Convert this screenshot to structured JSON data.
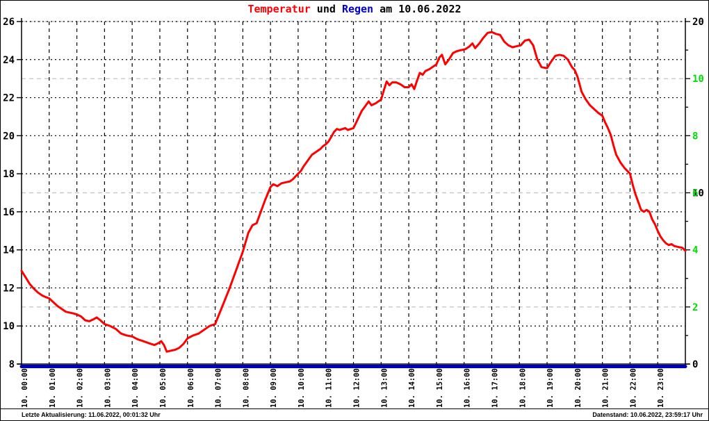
{
  "title": {
    "segments": [
      {
        "text": "Temperatur",
        "color": "#ff0000"
      },
      {
        "text": " und ",
        "color": "#000000"
      },
      {
        "text": "Regen",
        "color": "#0000cc"
      },
      {
        "text": " am 10.06.2022",
        "color": "#000000"
      }
    ]
  },
  "footer": {
    "left": "Letzte Aktualisierung: 11.06.2022, 00:01:32 Uhr",
    "right": "Datenstand: 10.06.2022, 23:59:17 Uhr"
  },
  "colors": {
    "temperature_line": "#ff0000",
    "rain_line": "#0000bb",
    "green_axis_text": "#00dd00",
    "black_axis_text": "#000000",
    "grid_black": "#000000",
    "grid_gray": "#c8c8c8",
    "background": "#ffffff"
  },
  "chart_data": {
    "type": "line",
    "title": "Temperatur und Regen am 10.06.2022",
    "grid": true,
    "x_axis": {
      "hours": 24,
      "labels": [
        "10. 00:00",
        "10. 01:00",
        "10. 02:00",
        "10. 03:00",
        "10. 04:00",
        "10. 05:00",
        "10. 06:00",
        "10. 07:00",
        "10. 08:00",
        "10. 09:00",
        "10. 10:00",
        "10. 11:00",
        "10. 12:00",
        "10. 13:00",
        "10. 14:00",
        "10. 15:00",
        "10. 16:00",
        "10. 17:00",
        "10. 18:00",
        "10. 19:00",
        "10. 20:00",
        "10. 21:00",
        "10. 22:00",
        "10. 23:00"
      ]
    },
    "left_axis": {
      "min": 8,
      "max": 26,
      "ticks": [
        26,
        24,
        22,
        20,
        18,
        16,
        14,
        12,
        10,
        8
      ]
    },
    "right_axis_rain": {
      "min": 0,
      "max": 20,
      "labels": [
        {
          "value": 20,
          "at_green": 12
        },
        {
          "value": 10,
          "at_green": 6
        },
        {
          "value": 0,
          "at_green": 0
        }
      ]
    },
    "right_axis_green": {
      "min": 0,
      "max": 12,
      "labeled_ticks": [
        10,
        8,
        6,
        4,
        2
      ],
      "minor_tick_step": 1,
      "gray_gridlines_at": [
        2,
        6,
        10
      ]
    },
    "series": [
      {
        "name": "Temperatur",
        "axis": "left",
        "color": "#ff0000",
        "points": [
          [
            0,
            12.9
          ],
          [
            0.15,
            12.55
          ],
          [
            0.3,
            12.2
          ],
          [
            0.45,
            11.95
          ],
          [
            0.6,
            11.75
          ],
          [
            0.75,
            11.6
          ],
          [
            0.9,
            11.5
          ],
          [
            1,
            11.45
          ],
          [
            1.15,
            11.25
          ],
          [
            1.3,
            11.05
          ],
          [
            1.45,
            10.9
          ],
          [
            1.6,
            10.75
          ],
          [
            1.75,
            10.7
          ],
          [
            1.9,
            10.65
          ],
          [
            2,
            10.6
          ],
          [
            2.15,
            10.5
          ],
          [
            2.3,
            10.3
          ],
          [
            2.45,
            10.25
          ],
          [
            2.6,
            10.35
          ],
          [
            2.72,
            10.45
          ],
          [
            2.85,
            10.3
          ],
          [
            3,
            10.1
          ],
          [
            3.2,
            10.0
          ],
          [
            3.4,
            9.85
          ],
          [
            3.6,
            9.6
          ],
          [
            3.8,
            9.5
          ],
          [
            4,
            9.45
          ],
          [
            4.2,
            9.3
          ],
          [
            4.4,
            9.2
          ],
          [
            4.6,
            9.1
          ],
          [
            4.8,
            9.0
          ],
          [
            4.95,
            9.1
          ],
          [
            5.05,
            9.2
          ],
          [
            5.15,
            9.0
          ],
          [
            5.25,
            8.65
          ],
          [
            5.4,
            8.7
          ],
          [
            5.55,
            8.75
          ],
          [
            5.7,
            8.85
          ],
          [
            5.85,
            9.05
          ],
          [
            6,
            9.35
          ],
          [
            6.2,
            9.5
          ],
          [
            6.4,
            9.6
          ],
          [
            6.6,
            9.8
          ],
          [
            6.8,
            10.0
          ],
          [
            7,
            10.1
          ],
          [
            7.25,
            11.0
          ],
          [
            7.5,
            11.9
          ],
          [
            7.75,
            12.9
          ],
          [
            8,
            13.9
          ],
          [
            8.2,
            14.9
          ],
          [
            8.35,
            15.3
          ],
          [
            8.5,
            15.4
          ],
          [
            8.65,
            16.0
          ],
          [
            8.8,
            16.6
          ],
          [
            9,
            17.3
          ],
          [
            9.1,
            17.45
          ],
          [
            9.25,
            17.35
          ],
          [
            9.4,
            17.5
          ],
          [
            9.55,
            17.55
          ],
          [
            9.7,
            17.6
          ],
          [
            9.8,
            17.7
          ],
          [
            9.9,
            17.85
          ],
          [
            10,
            18.0
          ],
          [
            10.1,
            18.15
          ],
          [
            10.2,
            18.4
          ],
          [
            10.3,
            18.6
          ],
          [
            10.4,
            18.8
          ],
          [
            10.5,
            19.0
          ],
          [
            10.65,
            19.15
          ],
          [
            10.8,
            19.3
          ],
          [
            10.9,
            19.45
          ],
          [
            11,
            19.55
          ],
          [
            11.1,
            19.7
          ],
          [
            11.2,
            19.95
          ],
          [
            11.3,
            20.2
          ],
          [
            11.4,
            20.35
          ],
          [
            11.5,
            20.3
          ],
          [
            11.6,
            20.35
          ],
          [
            11.7,
            20.4
          ],
          [
            11.8,
            20.3
          ],
          [
            11.9,
            20.35
          ],
          [
            12,
            20.4
          ],
          [
            12.1,
            20.7
          ],
          [
            12.2,
            21.0
          ],
          [
            12.3,
            21.3
          ],
          [
            12.45,
            21.6
          ],
          [
            12.55,
            21.8
          ],
          [
            12.65,
            21.6
          ],
          [
            12.8,
            21.7
          ],
          [
            12.9,
            21.8
          ],
          [
            13,
            21.9
          ],
          [
            13.1,
            22.4
          ],
          [
            13.2,
            22.85
          ],
          [
            13.3,
            22.65
          ],
          [
            13.4,
            22.8
          ],
          [
            13.55,
            22.8
          ],
          [
            13.7,
            22.7
          ],
          [
            13.85,
            22.55
          ],
          [
            14,
            22.55
          ],
          [
            14.1,
            22.7
          ],
          [
            14.2,
            22.45
          ],
          [
            14.3,
            22.9
          ],
          [
            14.4,
            23.3
          ],
          [
            14.5,
            23.2
          ],
          [
            14.6,
            23.4
          ],
          [
            14.75,
            23.5
          ],
          [
            14.9,
            23.65
          ],
          [
            15,
            23.75
          ],
          [
            15.1,
            24.1
          ],
          [
            15.2,
            24.25
          ],
          [
            15.32,
            23.75
          ],
          [
            15.45,
            24.0
          ],
          [
            15.6,
            24.35
          ],
          [
            15.75,
            24.45
          ],
          [
            15.9,
            24.5
          ],
          [
            16.05,
            24.55
          ],
          [
            16.2,
            24.7
          ],
          [
            16.3,
            24.85
          ],
          [
            16.4,
            24.6
          ],
          [
            16.55,
            24.85
          ],
          [
            16.7,
            25.15
          ],
          [
            16.85,
            25.4
          ],
          [
            17,
            25.45
          ],
          [
            17.15,
            25.35
          ],
          [
            17.3,
            25.3
          ],
          [
            17.45,
            24.95
          ],
          [
            17.6,
            24.75
          ],
          [
            17.75,
            24.65
          ],
          [
            17.9,
            24.7
          ],
          [
            18.05,
            24.75
          ],
          [
            18.2,
            25.0
          ],
          [
            18.35,
            25.05
          ],
          [
            18.5,
            24.75
          ],
          [
            18.65,
            24.0
          ],
          [
            18.8,
            23.6
          ],
          [
            19,
            23.55
          ],
          [
            19.15,
            23.9
          ],
          [
            19.3,
            24.2
          ],
          [
            19.45,
            24.25
          ],
          [
            19.6,
            24.2
          ],
          [
            19.75,
            24.0
          ],
          [
            19.9,
            23.6
          ],
          [
            20,
            23.45
          ],
          [
            20.1,
            23.1
          ],
          [
            20.25,
            22.3
          ],
          [
            20.4,
            21.9
          ],
          [
            20.55,
            21.6
          ],
          [
            20.7,
            21.4
          ],
          [
            20.85,
            21.2
          ],
          [
            21,
            21.05
          ],
          [
            21.1,
            20.7
          ],
          [
            21.2,
            20.4
          ],
          [
            21.3,
            20.05
          ],
          [
            21.4,
            19.5
          ],
          [
            21.5,
            19.0
          ],
          [
            21.65,
            18.6
          ],
          [
            21.8,
            18.3
          ],
          [
            22,
            18.0
          ],
          [
            22.1,
            17.4
          ],
          [
            22.2,
            16.9
          ],
          [
            22.3,
            16.5
          ],
          [
            22.4,
            16.1
          ],
          [
            22.5,
            16.0
          ],
          [
            22.6,
            16.1
          ],
          [
            22.7,
            16.0
          ],
          [
            22.8,
            15.6
          ],
          [
            22.9,
            15.35
          ],
          [
            23,
            15.0
          ],
          [
            23.1,
            14.7
          ],
          [
            23.2,
            14.5
          ],
          [
            23.3,
            14.35
          ],
          [
            23.4,
            14.25
          ],
          [
            23.5,
            14.3
          ],
          [
            23.6,
            14.2
          ],
          [
            23.75,
            14.15
          ],
          [
            23.9,
            14.1
          ],
          [
            24,
            13.95
          ]
        ]
      },
      {
        "name": "Regen",
        "axis": "right_rain",
        "color": "#0000bb",
        "points": [
          [
            0,
            0
          ],
          [
            24,
            0
          ]
        ]
      }
    ]
  }
}
